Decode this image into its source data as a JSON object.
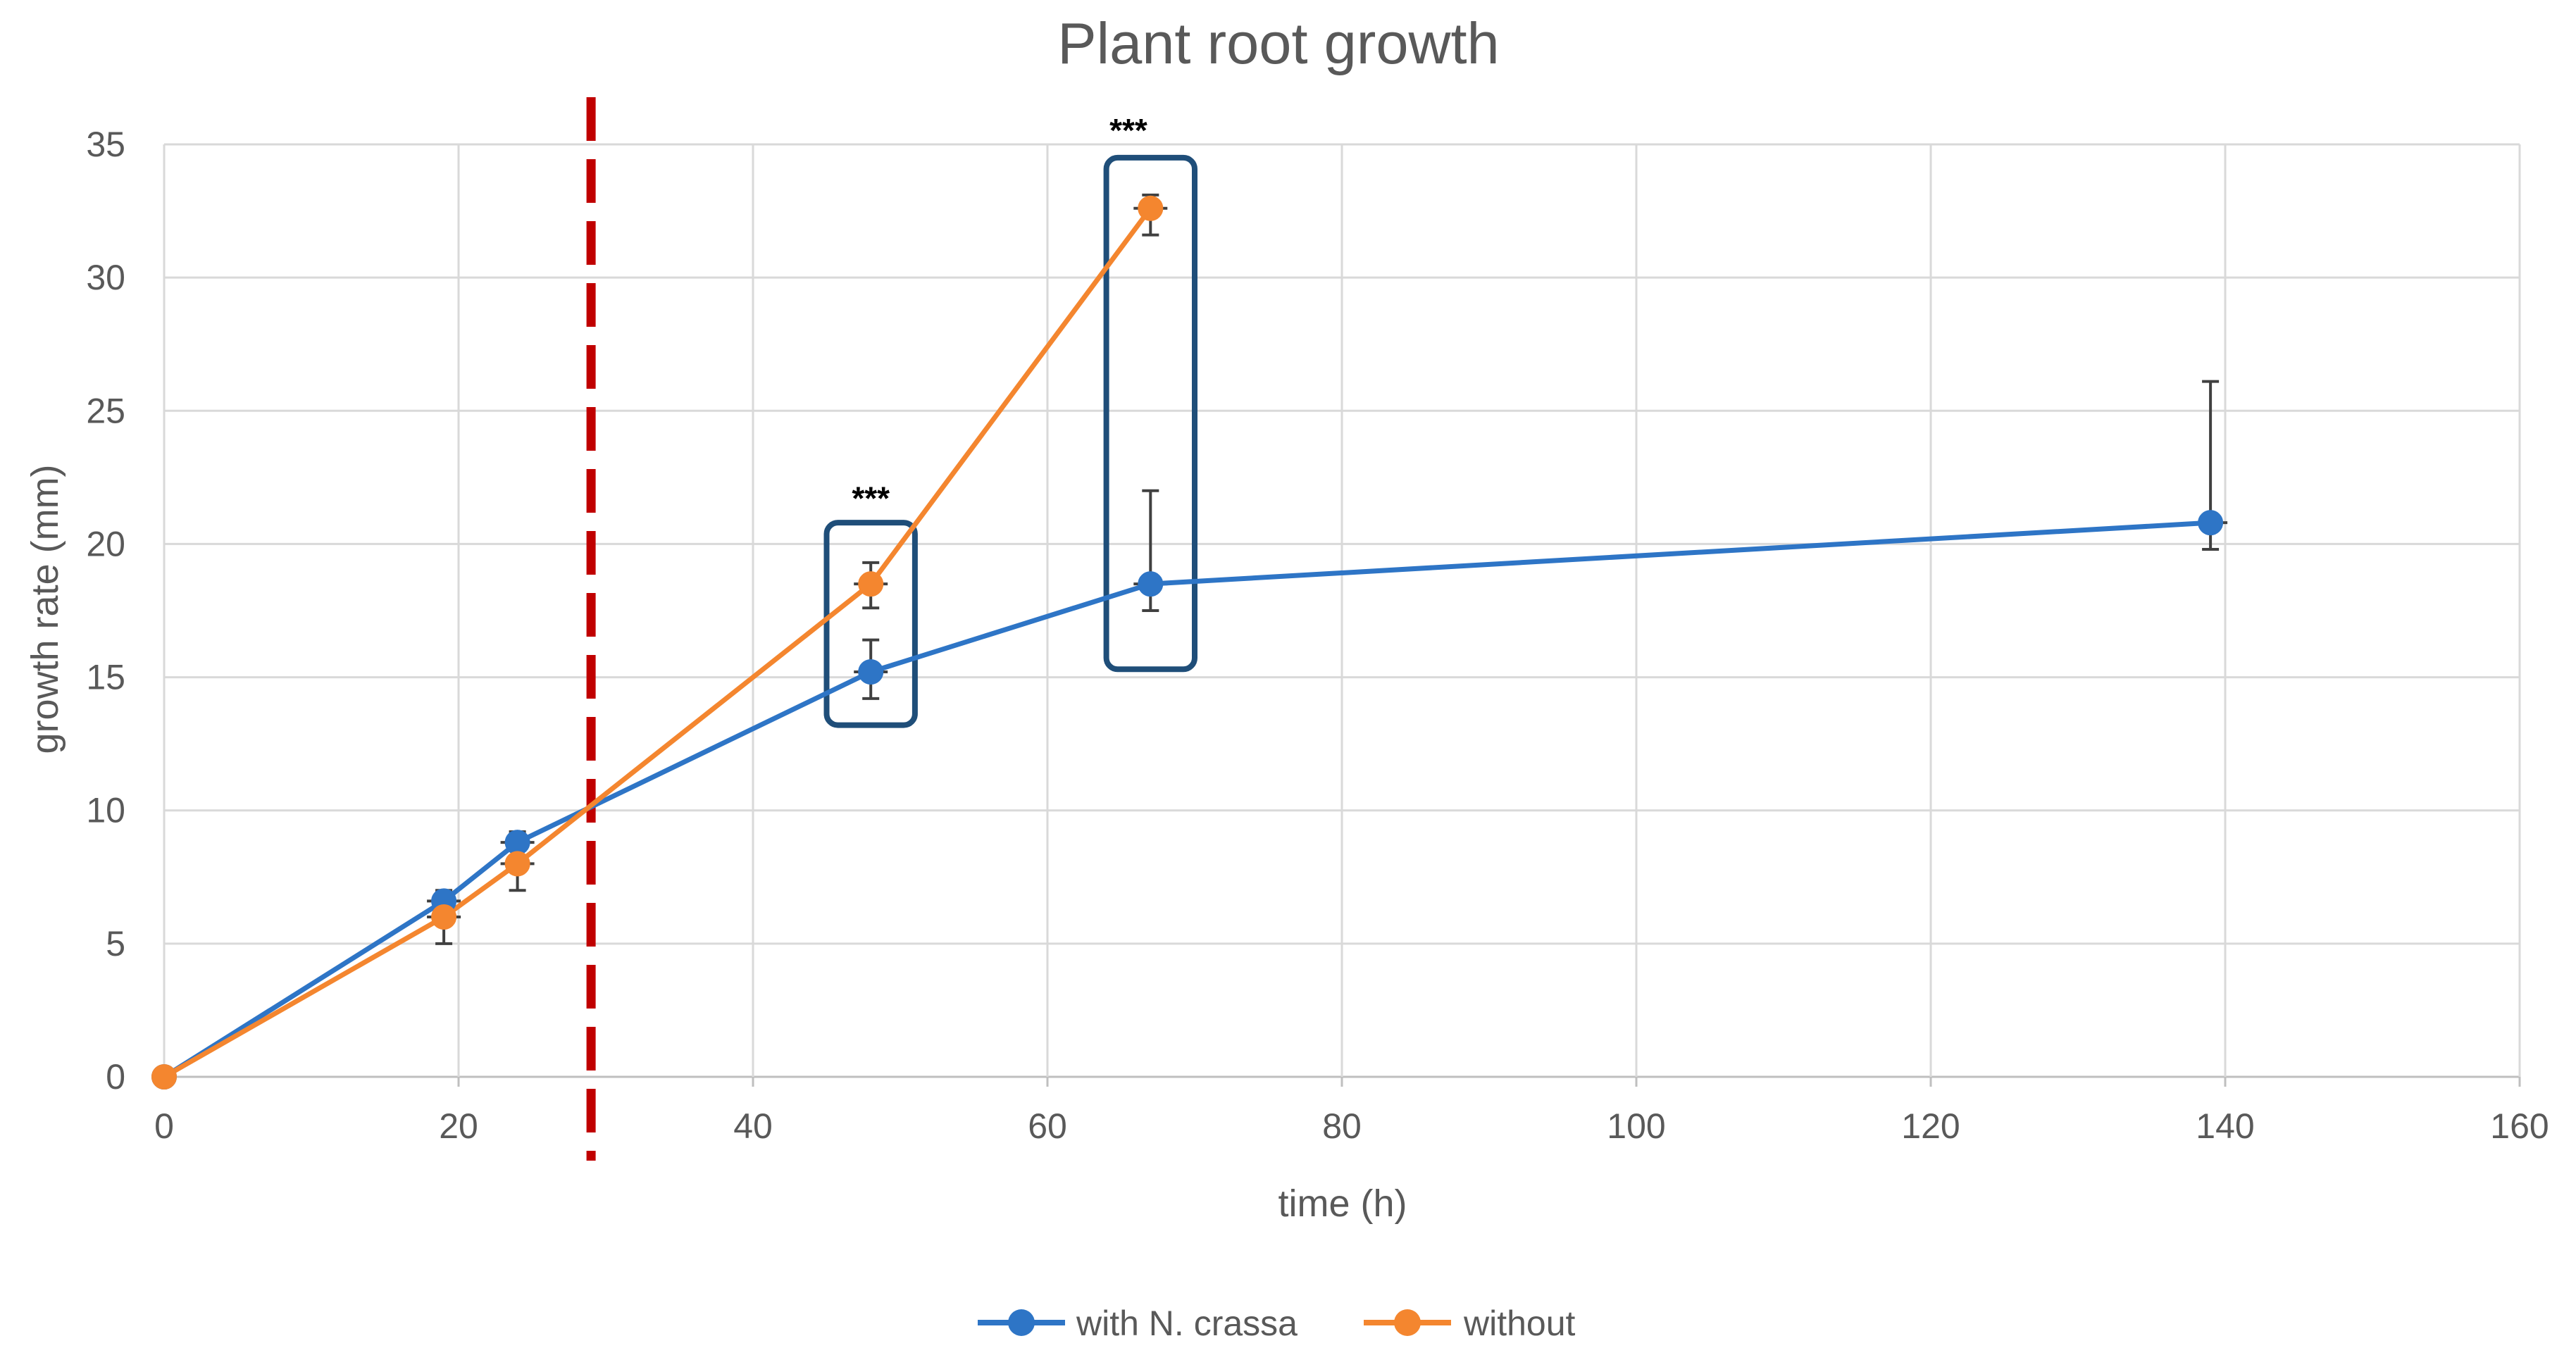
{
  "chart_data": {
    "type": "line",
    "title": "Plant root growth",
    "xlabel": "time (h)",
    "ylabel": "growth rate (mm)",
    "xlim": [
      0,
      160
    ],
    "ylim": [
      0,
      35
    ],
    "xticks": [
      0,
      20,
      40,
      60,
      80,
      100,
      120,
      140,
      160
    ],
    "yticks": [
      0,
      5,
      10,
      15,
      20,
      25,
      30,
      35
    ],
    "grid": true,
    "legend_position": "bottom-center",
    "series": [
      {
        "name": "with N. crassa",
        "color": "#2E75C6",
        "points": [
          {
            "x": 0,
            "y": 0,
            "err_low": 0,
            "err_high": 0
          },
          {
            "x": 19,
            "y": 6.6,
            "err_low": 0.5,
            "err_high": 0.4
          },
          {
            "x": 24,
            "y": 8.8,
            "err_low": 0.5,
            "err_high": 0.4
          },
          {
            "x": 48,
            "y": 15.2,
            "err_low": 1.0,
            "err_high": 1.2
          },
          {
            "x": 67,
            "y": 18.5,
            "err_low": 1.0,
            "err_high": 3.5
          },
          {
            "x": 139,
            "y": 20.8,
            "err_low": 1.0,
            "err_high": 5.3
          }
        ]
      },
      {
        "name": "without",
        "color": "#F4862F",
        "points": [
          {
            "x": 0,
            "y": 0,
            "err_low": 0,
            "err_high": 0
          },
          {
            "x": 19,
            "y": 6.0,
            "err_low": 1.0,
            "err_high": 0.5
          },
          {
            "x": 24,
            "y": 8.0,
            "err_low": 1.0,
            "err_high": 0.5
          },
          {
            "x": 48,
            "y": 18.5,
            "err_low": 0.9,
            "err_high": 0.8
          },
          {
            "x": 67,
            "y": 32.6,
            "err_low": 1.0,
            "err_high": 0.5
          }
        ]
      }
    ],
    "reference_line": {
      "x": 29,
      "color": "#C00000",
      "style": "dashed"
    },
    "highlight_boxes": [
      {
        "x0": 45,
        "x1": 51,
        "y0": 13.2,
        "y1": 20.8,
        "color": "#1F4E79"
      },
      {
        "x0": 64,
        "x1": 70,
        "y0": 15.3,
        "y1": 34.5,
        "color": "#1F4E79"
      }
    ],
    "annotations": [
      {
        "text": "***",
        "x": 48,
        "y": 21.3
      },
      {
        "text": "***",
        "x": 65.5,
        "y": 35.1
      }
    ]
  }
}
